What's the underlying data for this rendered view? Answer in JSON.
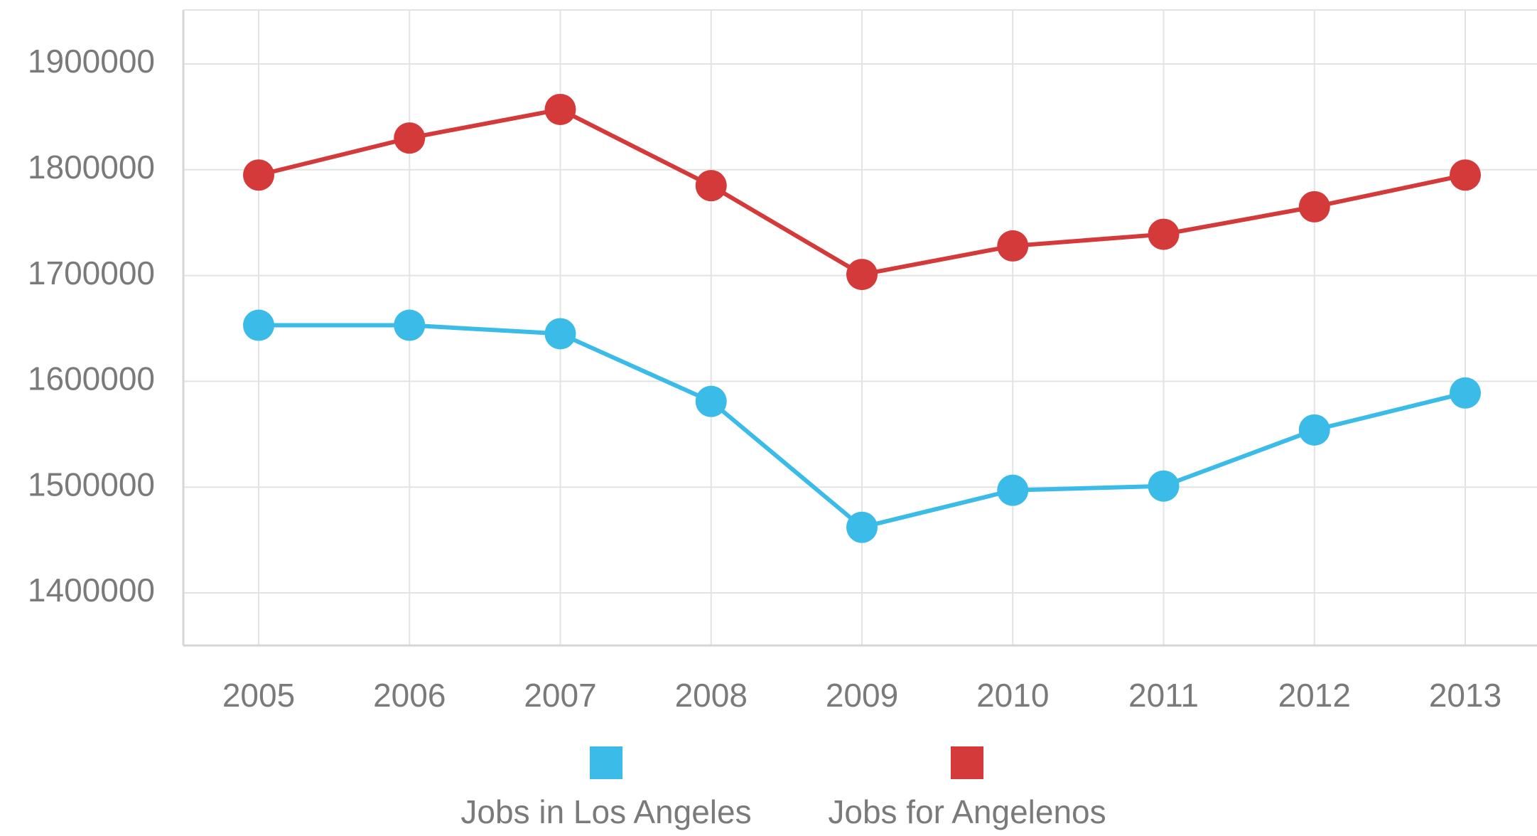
{
  "chart_data": {
    "type": "line",
    "title": "",
    "xlabel": "",
    "ylabel": "",
    "categories": [
      "2005",
      "2006",
      "2007",
      "2008",
      "2009",
      "2010",
      "2011",
      "2012",
      "2013"
    ],
    "series": [
      {
        "name": "Jobs in Los Angeles",
        "color": "#3bbbe8",
        "values": [
          1653000,
          1653000,
          1645000,
          1581000,
          1462000,
          1497000,
          1501000,
          1554000,
          1589000
        ]
      },
      {
        "name": "Jobs for Angelenos",
        "color": "#d53a3a",
        "values": [
          1795000,
          1830000,
          1857000,
          1785000,
          1701000,
          1728000,
          1739000,
          1765000,
          1795000
        ]
      }
    ],
    "y_ticks": [
      "1400000",
      "1500000",
      "1600000",
      "1700000",
      "1800000",
      "1900000"
    ],
    "ylim": [
      1350000,
      1950000
    ],
    "grid": true,
    "legend_position": "bottom-center"
  }
}
